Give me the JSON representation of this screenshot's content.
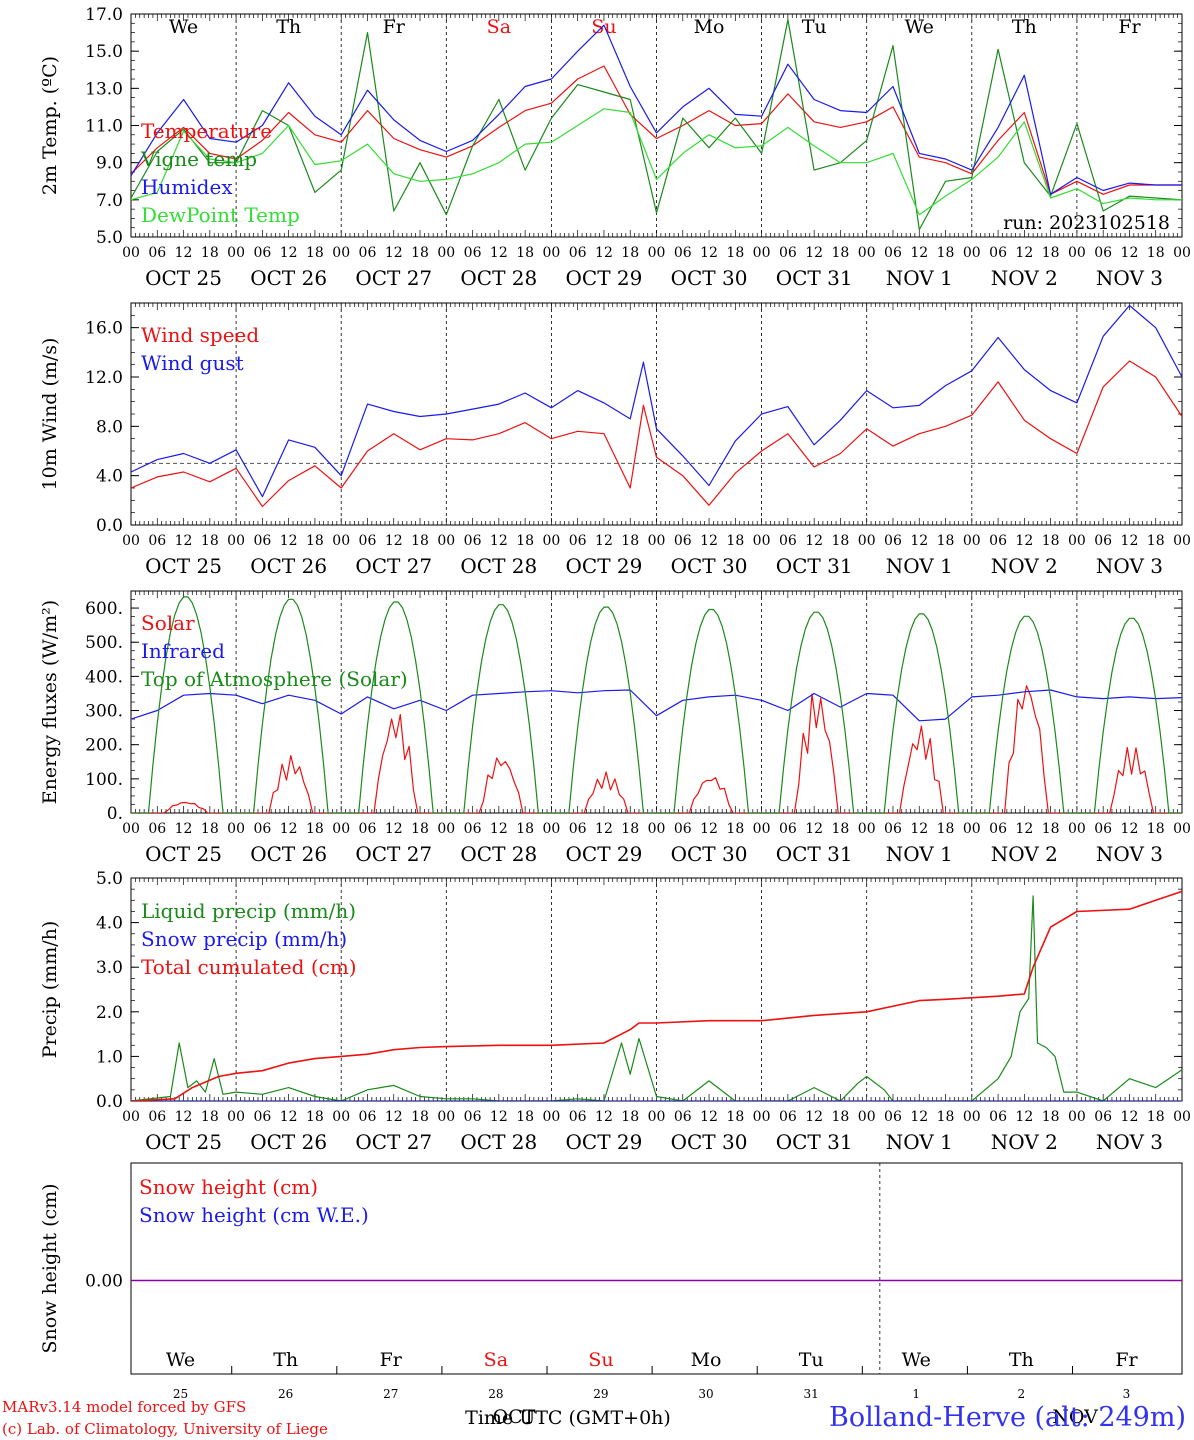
{
  "colors": {
    "red": "#ee1111",
    "green": "#1a8a1a",
    "blue": "#1a1aee",
    "lightgreen": "#33dd33",
    "purple": "#8800aa",
    "axis": "#000000",
    "site": "#3333ee"
  },
  "days": [
    "We",
    "Th",
    "Fr",
    "Sa",
    "Su",
    "Mo",
    "Tu",
    "We",
    "Th",
    "Fr"
  ],
  "weekend_days": [
    3,
    4
  ],
  "date_labels": [
    "OCT 25",
    "OCT 26",
    "OCT 27",
    "OCT 28",
    "OCT 29",
    "OCT 30",
    "OCT 31",
    "NOV 1",
    "NOV 2",
    "NOV 3"
  ],
  "hour_labels": [
    "00",
    "06",
    "12",
    "18"
  ],
  "hour_label_end": "00",
  "bottom_day_numbers": [
    "25",
    "26",
    "27",
    "28",
    "29",
    "30",
    "31",
    "1",
    "2",
    "3"
  ],
  "run_label": "run: 2023102518",
  "footer": {
    "line1": "MARv3.14 model forced by GFS",
    "line2": "(c) Lab. of Climatology, University of Liege",
    "axis_title": "Time UTC (GMT+0h)",
    "overlap_oct": "OCT",
    "overlap_nov": "NOV",
    "site": "Bolland-Herve (alt: 249m)"
  },
  "chart_data": [
    {
      "type": "line",
      "ylabel": "2m Temp. (ºC)",
      "ylim": [
        5.0,
        17.0
      ],
      "yticks": [
        "5.0",
        "7.0",
        "9.0",
        "11.0",
        "13.0",
        "15.0",
        "17.0"
      ],
      "x_unit": "hours since OCT 25 00 UTC",
      "series": [
        {
          "name": "Temperature",
          "color": "red",
          "x": [
            0,
            6,
            12,
            18,
            24,
            30,
            36,
            42,
            48,
            54,
            60,
            66,
            72,
            78,
            84,
            90,
            96,
            102,
            108,
            114,
            120,
            126,
            132,
            138,
            144,
            150,
            156,
            162,
            168,
            174,
            180,
            186,
            192,
            198,
            204,
            210,
            216,
            222,
            228,
            234,
            240
          ],
          "values": [
            8.4,
            9.8,
            10.9,
            9.5,
            9.2,
            10.2,
            11.7,
            10.5,
            10.1,
            11.8,
            10.3,
            9.7,
            9.3,
            9.9,
            10.9,
            11.8,
            12.2,
            13.5,
            14.2,
            11.6,
            10.3,
            11.0,
            11.8,
            11.0,
            11.1,
            12.7,
            11.2,
            10.9,
            11.2,
            12.0,
            9.3,
            9.0,
            8.4,
            10.2,
            11.7,
            7.3,
            8.0,
            7.3,
            7.8,
            7.8,
            7.8
          ]
        },
        {
          "name": "Vigne temp",
          "color": "green",
          "x": [
            0,
            6,
            12,
            18,
            24,
            30,
            36,
            42,
            48,
            54,
            60,
            66,
            72,
            78,
            84,
            90,
            96,
            102,
            108,
            114,
            120,
            126,
            132,
            138,
            144,
            150,
            156,
            162,
            168,
            174,
            180,
            186,
            192,
            198,
            204,
            210,
            216,
            222,
            228,
            234,
            240
          ],
          "values": [
            7.1,
            9.6,
            10.8,
            9.0,
            9.0,
            11.8,
            11.0,
            7.4,
            8.6,
            16.0,
            6.4,
            9.0,
            6.2,
            9.9,
            12.4,
            8.6,
            11.4,
            13.2,
            12.8,
            12.4,
            6.3,
            11.4,
            9.8,
            11.4,
            9.5,
            16.7,
            8.6,
            9.0,
            10.2,
            15.3,
            5.4,
            8.0,
            8.2,
            15.1,
            9.0,
            7.2,
            11.1,
            6.4,
            7.2,
            7.1,
            7.0
          ]
        },
        {
          "name": "Humidex",
          "color": "blue",
          "x": [
            0,
            6,
            12,
            18,
            24,
            30,
            36,
            42,
            48,
            54,
            60,
            66,
            72,
            78,
            84,
            90,
            96,
            102,
            108,
            114,
            120,
            126,
            132,
            138,
            144,
            150,
            156,
            162,
            168,
            174,
            180,
            186,
            192,
            198,
            204,
            210,
            216,
            222,
            228,
            234,
            240
          ],
          "values": [
            8.3,
            10.6,
            12.4,
            10.3,
            10.1,
            11.0,
            13.3,
            11.5,
            10.5,
            12.9,
            11.3,
            10.2,
            9.6,
            10.2,
            11.6,
            13.1,
            13.5,
            15.0,
            16.4,
            13.1,
            10.6,
            12.0,
            13.0,
            11.6,
            11.5,
            14.3,
            12.4,
            11.8,
            11.7,
            13.1,
            9.5,
            9.2,
            8.6,
            10.9,
            13.7,
            7.3,
            8.2,
            7.5,
            7.9,
            7.8,
            7.8
          ]
        },
        {
          "name": "DewPoint Temp",
          "color": "lightgreen",
          "x": [
            0,
            6,
            12,
            18,
            24,
            30,
            36,
            42,
            48,
            54,
            60,
            66,
            72,
            78,
            84,
            90,
            96,
            102,
            108,
            114,
            120,
            126,
            132,
            138,
            144,
            150,
            156,
            162,
            168,
            174,
            180,
            186,
            192,
            198,
            204,
            210,
            216,
            222,
            228,
            234,
            240
          ],
          "values": [
            7.0,
            7.4,
            10.7,
            9.2,
            9.0,
            9.5,
            11.0,
            8.9,
            9.1,
            10.0,
            8.4,
            8.0,
            8.1,
            8.4,
            9.0,
            10.0,
            10.1,
            11.0,
            11.9,
            11.7,
            8.1,
            9.5,
            10.5,
            9.8,
            9.9,
            10.9,
            9.9,
            9.0,
            9.0,
            9.5,
            6.2,
            7.2,
            8.1,
            9.3,
            11.2,
            7.1,
            7.6,
            6.8,
            7.1,
            7.0,
            7.0
          ]
        }
      ]
    },
    {
      "type": "line",
      "ylabel": "10m Wind (m/s)",
      "ylim": [
        0.0,
        18.0
      ],
      "yticks": [
        "0.0",
        "4.0",
        "8.0",
        "12.0",
        "16.0"
      ],
      "hline": 5.0,
      "x_unit": "hours since OCT 25 00 UTC",
      "series": [
        {
          "name": "Wind speed",
          "color": "red",
          "x": [
            0,
            6,
            12,
            18,
            24,
            30,
            36,
            42,
            48,
            54,
            60,
            66,
            72,
            78,
            84,
            90,
            96,
            102,
            108,
            114,
            117,
            120,
            126,
            132,
            138,
            144,
            150,
            156,
            162,
            168,
            174,
            180,
            186,
            192,
            198,
            204,
            210,
            216,
            222,
            228,
            234,
            240
          ],
          "values": [
            3.0,
            3.9,
            4.3,
            3.5,
            4.6,
            1.5,
            3.6,
            4.8,
            3.0,
            6.0,
            7.4,
            6.1,
            7.0,
            6.9,
            7.4,
            8.3,
            7.0,
            7.6,
            7.4,
            3.0,
            9.7,
            5.5,
            4.0,
            1.6,
            4.2,
            6.0,
            7.4,
            4.7,
            5.8,
            7.8,
            6.4,
            7.4,
            8.0,
            8.9,
            11.6,
            8.5,
            7.0,
            5.8,
            11.2,
            13.3,
            12.0,
            8.8
          ]
        },
        {
          "name": "Wind gust",
          "color": "blue",
          "x": [
            0,
            6,
            12,
            18,
            24,
            30,
            36,
            42,
            48,
            54,
            60,
            66,
            72,
            78,
            84,
            90,
            96,
            102,
            108,
            114,
            117,
            120,
            126,
            132,
            138,
            144,
            150,
            156,
            162,
            168,
            174,
            180,
            186,
            192,
            198,
            204,
            210,
            216,
            222,
            228,
            234,
            240
          ],
          "values": [
            4.3,
            5.3,
            5.8,
            5.0,
            6.1,
            2.3,
            6.9,
            6.3,
            4.0,
            9.8,
            9.2,
            8.8,
            9.0,
            9.4,
            9.8,
            10.7,
            9.5,
            10.9,
            9.9,
            8.6,
            13.2,
            7.8,
            5.6,
            3.2,
            6.8,
            9.0,
            9.6,
            6.5,
            8.5,
            10.9,
            9.5,
            9.7,
            11.3,
            12.5,
            15.2,
            12.6,
            10.9,
            9.9,
            15.3,
            17.8,
            16.0,
            12.0
          ]
        }
      ]
    },
    {
      "type": "line",
      "ylabel": "Energy fluxes (W/m²)",
      "ylim": [
        0,
        650
      ],
      "yticks": [
        "0.",
        "100.",
        "200.",
        "300.",
        "400.",
        "500.",
        "600."
      ],
      "x_unit": "hours since OCT 25 00 UTC",
      "series": [
        {
          "name": "Solar",
          "color": "red",
          "daily_peaks": [
            35,
            170,
            305,
            175,
            120,
            115,
            365,
            260,
            410,
            200
          ]
        },
        {
          "name": "Infrared",
          "color": "blue",
          "x": [
            0,
            6,
            12,
            18,
            24,
            30,
            36,
            42,
            48,
            54,
            60,
            66,
            72,
            78,
            84,
            90,
            96,
            102,
            108,
            114,
            120,
            126,
            132,
            138,
            144,
            150,
            156,
            162,
            168,
            174,
            180,
            186,
            192,
            198,
            204,
            210,
            216,
            222,
            228,
            234,
            240
          ],
          "values": [
            275,
            300,
            345,
            350,
            345,
            320,
            345,
            330,
            290,
            340,
            305,
            330,
            300,
            345,
            350,
            355,
            358,
            352,
            358,
            360,
            285,
            330,
            340,
            345,
            330,
            300,
            350,
            310,
            350,
            345,
            270,
            275,
            340,
            345,
            355,
            360,
            340,
            335,
            340,
            335,
            338
          ]
        },
        {
          "name": "Top of Atmosphere (Solar)",
          "color": "green",
          "daily_peaks": [
            635,
            628,
            620,
            612,
            605,
            598,
            590,
            585,
            578,
            572
          ]
        }
      ]
    },
    {
      "type": "line",
      "ylabel": "Precip (mm/h)",
      "ylim": [
        0.0,
        5.0
      ],
      "yticks": [
        "0.0",
        "1.0",
        "2.0",
        "3.0",
        "4.0",
        "5.0"
      ],
      "x_unit": "hours since OCT 25 00 UTC",
      "series": [
        {
          "name": "Liquid precip (mm/h)",
          "color": "green",
          "x": [
            0,
            9,
            11,
            13,
            15,
            17,
            19,
            21,
            24,
            30,
            36,
            42,
            48,
            54,
            60,
            66,
            72,
            78,
            84,
            90,
            96,
            102,
            108,
            112,
            114,
            116,
            120,
            126,
            132,
            138,
            144,
            150,
            156,
            162,
            166,
            168,
            172,
            174,
            180,
            186,
            192,
            198,
            201,
            203,
            205,
            206,
            207,
            209,
            211,
            213,
            216,
            222,
            228,
            234,
            240
          ],
          "values": [
            0.0,
            0.1,
            1.3,
            0.3,
            0.45,
            0.2,
            0.95,
            0.15,
            0.2,
            0.15,
            0.3,
            0.1,
            0.0,
            0.25,
            0.35,
            0.1,
            0.05,
            0.05,
            0.0,
            0.0,
            0.0,
            0.05,
            0.0,
            1.3,
            0.6,
            1.4,
            0.1,
            0.0,
            0.45,
            0.0,
            0.0,
            0.0,
            0.3,
            0.0,
            0.4,
            0.55,
            0.25,
            0.0,
            0.0,
            0.0,
            0.0,
            0.5,
            1.0,
            2.0,
            2.3,
            4.6,
            1.3,
            1.2,
            1.0,
            0.2,
            0.2,
            0.0,
            0.5,
            0.3,
            0.7
          ]
        },
        {
          "name": "Snow precip (mm/h)",
          "color": "blue",
          "x": [
            0,
            240
          ],
          "values": [
            0.0,
            0.0
          ]
        },
        {
          "name": "Total cumulated (cm)",
          "color": "red",
          "x": [
            0,
            10,
            14,
            20,
            24,
            30,
            36,
            42,
            48,
            54,
            60,
            66,
            72,
            84,
            96,
            108,
            114,
            116,
            120,
            132,
            144,
            156,
            168,
            180,
            186,
            198,
            204,
            206,
            210,
            216,
            228,
            234,
            240
          ],
          "values": [
            0.0,
            0.05,
            0.3,
            0.55,
            0.62,
            0.68,
            0.85,
            0.95,
            1.0,
            1.05,
            1.15,
            1.2,
            1.22,
            1.25,
            1.25,
            1.3,
            1.6,
            1.75,
            1.75,
            1.8,
            1.8,
            1.92,
            2.0,
            2.25,
            2.28,
            2.35,
            2.4,
            3.0,
            3.9,
            4.25,
            4.3,
            4.5,
            4.7
          ]
        }
      ]
    },
    {
      "type": "line",
      "ylabel": "Snow height (cm)",
      "yticks": [
        "0.00"
      ],
      "series": [
        {
          "name": "Snow height (cm)",
          "color": "red",
          "x": [
            0,
            240
          ],
          "values": [
            0.0,
            0.0
          ]
        },
        {
          "name": "Snow height (cm W.E.)",
          "color": "blue",
          "x": [
            0,
            240
          ],
          "values": [
            0.0,
            0.0
          ]
        }
      ]
    }
  ]
}
